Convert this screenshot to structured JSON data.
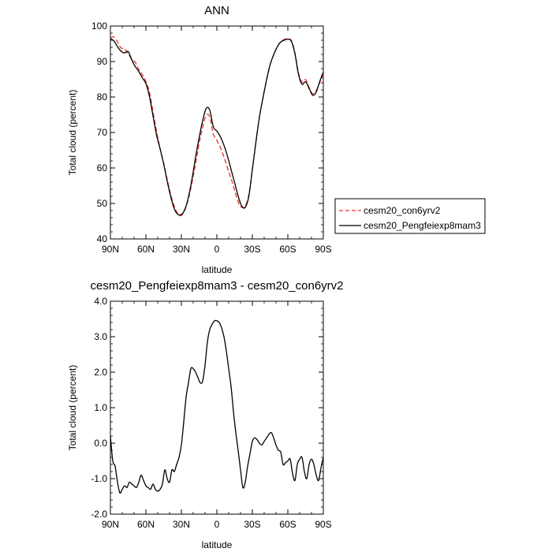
{
  "chart_data": [
    {
      "type": "line",
      "title": "ANN",
      "xlabel": "latitude",
      "ylabel": "Total cloud (percent)",
      "x_tick_labels": [
        "90N",
        "60N",
        "30N",
        "0",
        "30S",
        "60S",
        "90S"
      ],
      "y_tick_labels": [
        "40",
        "50",
        "60",
        "70",
        "80",
        "90",
        "100"
      ],
      "xlim": [
        90,
        -90
      ],
      "ylim": [
        40,
        100
      ],
      "y_ticks": [
        40,
        50,
        60,
        70,
        80,
        90,
        100
      ],
      "x_ticks": [
        90,
        60,
        30,
        0,
        -30,
        -60,
        -90
      ],
      "legend_position": "right",
      "series": [
        {
          "name": "cesm20_con6yrv2",
          "color": "#e8322e",
          "dash": "dashed",
          "x": [
            90,
            87,
            84,
            81,
            78,
            75,
            72,
            69,
            66,
            63,
            60,
            57,
            54,
            51,
            48,
            45,
            42,
            39,
            36,
            33,
            30,
            27,
            24,
            21,
            18,
            15,
            12,
            9,
            6,
            3,
            0,
            -3,
            -6,
            -9,
            -12,
            -15,
            -18,
            -21,
            -24,
            -27,
            -30,
            -33,
            -36,
            -39,
            -42,
            -45,
            -48,
            -51,
            -54,
            -57,
            -60,
            -63,
            -66,
            -69,
            -72,
            -75,
            -78,
            -81,
            -84,
            -87,
            -90
          ],
          "y": [
            96.7,
            96.9,
            95.5,
            93.8,
            93.6,
            92.1,
            90.8,
            89.8,
            87.8,
            86.3,
            84.4,
            81.4,
            75.8,
            70.4,
            65.5,
            61.5,
            56.8,
            52.5,
            49.2,
            47.1,
            46.6,
            48.2,
            51.4,
            55.9,
            61.2,
            66.9,
            71.5,
            74.8,
            74.4,
            69.6,
            67.8,
            65.7,
            63.1,
            60.0,
            57.1,
            53.7,
            50.5,
            48.9,
            49.3,
            52.4,
            59.7,
            67.2,
            74.3,
            79.7,
            84.7,
            89.0,
            91.8,
            94.1,
            95.6,
            96.2,
            96.4,
            95.9,
            92.5,
            86.8,
            84.2,
            84.9,
            82.7,
            80.9,
            81.8,
            84.1,
            86.3
          ]
        },
        {
          "name": "cesm20_Pengfeiexp8mam3",
          "color": "#000000",
          "dash": "solid",
          "x": [
            90,
            87,
            84,
            81,
            78,
            75,
            72,
            69,
            66,
            63,
            60,
            57,
            54,
            51,
            48,
            45,
            42,
            39,
            36,
            33,
            30,
            27,
            24,
            21,
            18,
            15,
            12,
            9,
            6,
            3,
            0,
            -3,
            -6,
            -9,
            -12,
            -15,
            -18,
            -21,
            -24,
            -27,
            -30,
            -33,
            -36,
            -39,
            -42,
            -45,
            -48,
            -51,
            -54,
            -57,
            -60,
            -63,
            -66,
            -69,
            -72,
            -75,
            -78,
            -81,
            -84,
            -87,
            -90
          ],
          "y": [
            96.5,
            95.8,
            94.2,
            92.9,
            92.4,
            92.8,
            90.5,
            88.6,
            87.2,
            85.4,
            83.8,
            80.2,
            74.7,
            69.3,
            65.4,
            61.2,
            56.3,
            51.9,
            48.5,
            46.9,
            46.9,
            48.4,
            51.8,
            56.9,
            63.0,
            68.5,
            73.3,
            76.8,
            76.3,
            71.6,
            70.4,
            68.8,
            66.4,
            63.3,
            59.6,
            55.9,
            52.1,
            49.3,
            48.9,
            52.0,
            59.5,
            67.3,
            74.4,
            79.8,
            84.8,
            89.1,
            91.9,
            94.1,
            95.5,
            96.0,
            96.3,
            95.7,
            92.2,
            86.4,
            83.6,
            84.3,
            82.4,
            80.5,
            81.4,
            84.4,
            87.0
          ]
        }
      ]
    },
    {
      "type": "line",
      "title": "cesm20_Pengfeiexp8mam3 - cesm20_con6yrv2",
      "xlabel": "latitude",
      "ylabel": "Total cloud (percent)",
      "x_tick_labels": [
        "90N",
        "60N",
        "30N",
        "0",
        "30S",
        "60S",
        "90S"
      ],
      "y_tick_labels": [
        "-2.0",
        "-1.0",
        "0.0",
        "1.0",
        "2.0",
        "3.0",
        "4.0"
      ],
      "xlim": [
        90,
        -90
      ],
      "ylim": [
        -2,
        4
      ],
      "y_ticks": [
        -2,
        -1,
        0,
        1,
        2,
        3,
        4
      ],
      "x_ticks": [
        90,
        60,
        30,
        0,
        -30,
        -60,
        -90
      ],
      "series": [
        {
          "color": "#000000",
          "dash": "solid",
          "x": [
            90,
            88,
            86,
            84,
            82,
            80,
            78,
            76,
            74,
            72,
            70,
            68,
            66,
            64,
            62,
            60,
            58,
            56,
            54,
            52,
            50,
            48,
            46,
            44,
            42,
            40,
            38,
            36,
            34,
            32,
            30,
            28,
            26,
            24,
            22,
            20,
            18,
            16,
            14,
            12,
            10,
            8,
            6,
            4,
            2,
            0,
            -2,
            -4,
            -6,
            -8,
            -10,
            -12,
            -14,
            -16,
            -18,
            -20,
            -22,
            -24,
            -26,
            -28,
            -30,
            -32,
            -34,
            -36,
            -38,
            -40,
            -42,
            -44,
            -46,
            -48,
            -50,
            -52,
            -54,
            -56,
            -58,
            -60,
            -62,
            -64,
            -66,
            -68,
            -70,
            -72,
            -74,
            -76,
            -78,
            -80,
            -82,
            -84,
            -86,
            -88,
            -90
          ],
          "y": [
            0.2,
            -0.5,
            -0.65,
            -1.1,
            -1.4,
            -1.3,
            -1.2,
            -1.25,
            -1.1,
            -1.15,
            -1.2,
            -1.25,
            -1.1,
            -0.9,
            -1.05,
            -1.2,
            -1.25,
            -1.3,
            -1.15,
            -1.3,
            -1.35,
            -1.3,
            -1.15,
            -0.75,
            -1.0,
            -1.1,
            -0.75,
            -0.8,
            -0.6,
            -0.4,
            -0.05,
            0.6,
            1.3,
            1.7,
            2.1,
            2.1,
            2.0,
            1.85,
            1.7,
            1.75,
            2.2,
            2.85,
            3.2,
            3.35,
            3.45,
            3.45,
            3.4,
            3.25,
            3.0,
            2.6,
            2.1,
            1.6,
            0.9,
            0.3,
            -0.2,
            -0.75,
            -1.25,
            -1.1,
            -0.65,
            -0.3,
            0.05,
            0.15,
            0.1,
            0.0,
            -0.05,
            0.05,
            0.15,
            0.25,
            0.3,
            0.15,
            -0.05,
            -0.2,
            -0.25,
            -0.6,
            -0.55,
            -0.5,
            -0.45,
            -0.85,
            -1.05,
            -0.6,
            -0.45,
            -0.4,
            -0.8,
            -1.0,
            -0.6,
            -0.45,
            -0.6,
            -0.9,
            -1.05,
            -0.7,
            -0.4
          ]
        }
      ]
    }
  ],
  "legend": [
    {
      "label": "cesm20_con6yrv2",
      "style": "dashed",
      "color": "#e8322e"
    },
    {
      "label": "cesm20_Pengfeiexp8mam3",
      "style": "solid",
      "color": "#000000"
    }
  ]
}
